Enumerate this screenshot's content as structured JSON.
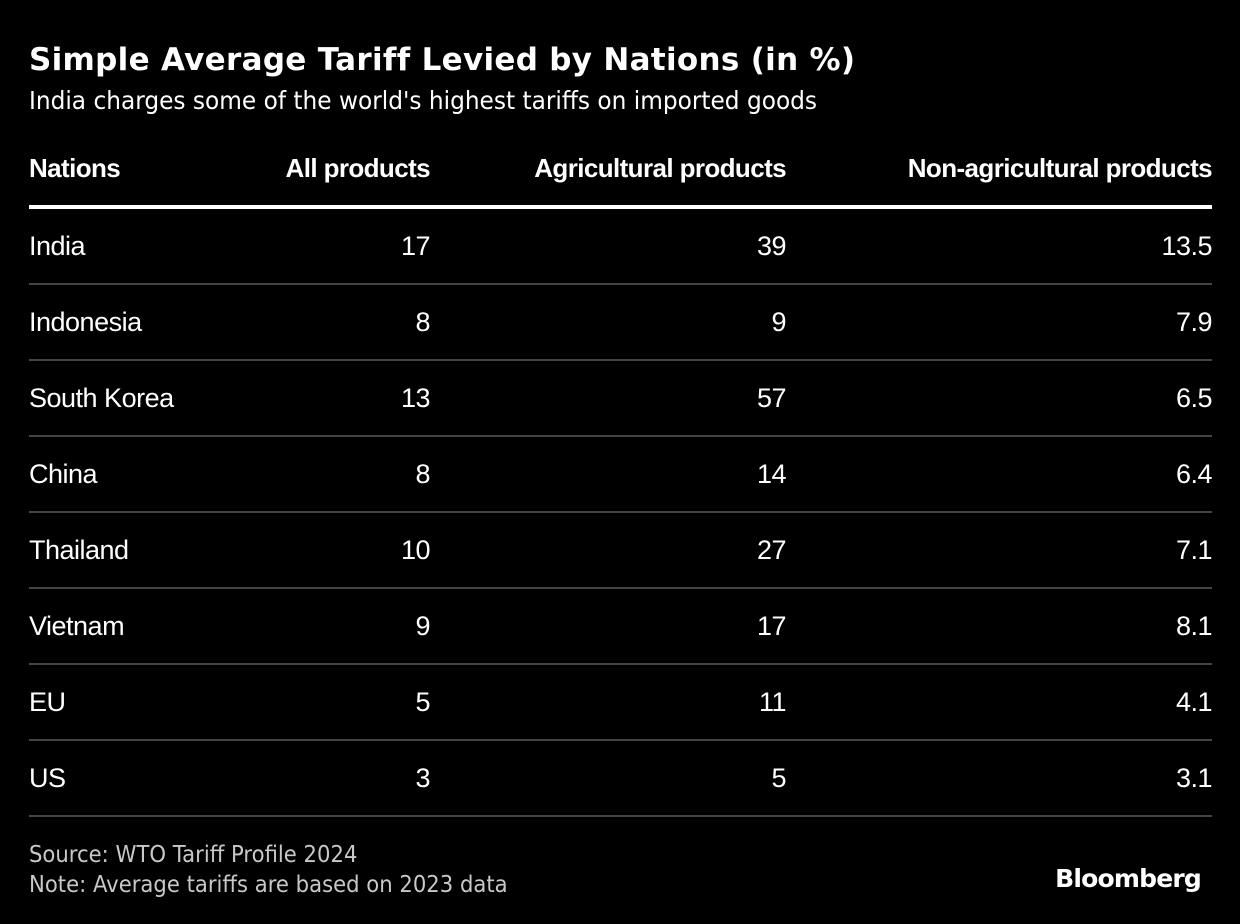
{
  "header": {
    "title": "Simple Average Tariff Levied by Nations (in %)",
    "subtitle": "India charges some of the world's highest tariffs on imported goods"
  },
  "chart_data": {
    "type": "table",
    "title": "Simple Average Tariff Levied by Nations (in %)",
    "subtitle": "India charges some of the world's highest tariffs on imported goods",
    "columns": [
      "Nations",
      "All products",
      "Agricultural products",
      "Non-agricultural products"
    ],
    "rows": [
      [
        "India",
        "17",
        "39",
        "13.5"
      ],
      [
        "Indonesia",
        "8",
        "9",
        "7.9"
      ],
      [
        "South Korea",
        "13",
        "57",
        "6.5"
      ],
      [
        "China",
        "8",
        "14",
        "6.4"
      ],
      [
        "Thailand",
        "10",
        "27",
        "7.1"
      ],
      [
        "Vietnam",
        "9",
        "17",
        "8.1"
      ],
      [
        "EU",
        "5",
        "11",
        "4.1"
      ],
      [
        "US",
        "3",
        "5",
        "3.1"
      ]
    ],
    "series": [
      {
        "name": "All products",
        "values": [
          17,
          8,
          13,
          8,
          10,
          9,
          5,
          3
        ]
      },
      {
        "name": "Agricultural products",
        "values": [
          39,
          9,
          57,
          14,
          27,
          17,
          11,
          5
        ]
      },
      {
        "name": "Non-agricultural products",
        "values": [
          13.5,
          7.9,
          6.5,
          6.4,
          7.1,
          8.1,
          4.1,
          3.1
        ]
      }
    ],
    "categories": [
      "India",
      "Indonesia",
      "South Korea",
      "China",
      "Thailand",
      "Vietnam",
      "EU",
      "US"
    ]
  },
  "footer": {
    "source": "Source: WTO Tariff Profile 2024",
    "note": "Note: Average tariffs are based on 2023 data",
    "brand": "Bloomberg"
  },
  "colors": {
    "background": "#000000",
    "text": "#ffffff",
    "footer_text": "#c8c8c8",
    "row_divider": "#444444"
  }
}
